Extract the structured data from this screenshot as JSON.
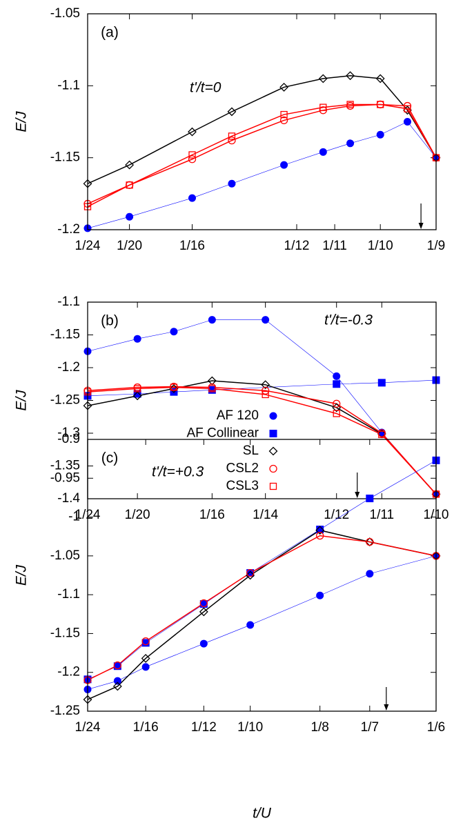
{
  "chart_data": [
    {
      "type": "line",
      "label": "(a)",
      "annotation": "t'/t=0",
      "y_label": "E/J",
      "legend": false,
      "arrow_x": 0.1081,
      "x": [
        0.041667,
        0.05,
        0.0625,
        0.0704,
        0.0808,
        0.0886,
        0.094,
        0.1,
        0.1054,
        0.111111
      ],
      "xlim": [
        0.041667,
        0.111111
      ],
      "xticks": [
        {
          "value": 0.041667,
          "label": "1/24"
        },
        {
          "value": 0.05,
          "label": "1/20"
        },
        {
          "value": 0.0625,
          "label": "1/16"
        },
        {
          "value": 0.083333,
          "label": "1/12"
        },
        {
          "value": 0.090909,
          "label": "1/11"
        },
        {
          "value": 0.1,
          "label": "1/10"
        },
        {
          "value": 0.111111,
          "label": "1/9"
        }
      ],
      "ylim": [
        -1.2,
        -1.05
      ],
      "yticks": [
        -1.2,
        -1.15,
        -1.1,
        -1.05
      ],
      "series": [
        {
          "name": "AF 120",
          "color": "#0000ff",
          "marker": "circle-filled",
          "values": [
            -1.199,
            -1.191,
            -1.178,
            -1.168,
            -1.155,
            -1.146,
            -1.14,
            -1.134,
            -1.125,
            -1.15
          ]
        },
        {
          "name": "SL",
          "color": "#000000",
          "marker": "diamond-open",
          "values": [
            -1.168,
            -1.155,
            -1.132,
            -1.118,
            -1.101,
            -1.095,
            -1.093,
            -1.095,
            -1.117,
            -1.15
          ]
        },
        {
          "name": "CSL2",
          "color": "#ff0000",
          "marker": "circle-open",
          "values": [
            -1.182,
            -1.169,
            -1.151,
            -1.138,
            -1.124,
            -1.117,
            -1.114,
            -1.113,
            -1.114,
            -1.15
          ]
        },
        {
          "name": "CSL3",
          "color": "#ff0000",
          "marker": "square-open",
          "values": [
            -1.184,
            -1.169,
            -1.148,
            -1.135,
            -1.12,
            -1.115,
            -1.113,
            -1.113,
            -1.116,
            -1.15
          ]
        }
      ]
    },
    {
      "type": "line",
      "label": "(b)",
      "annotation": "t'/t=-0.3",
      "y_label": "E/J",
      "legend": true,
      "arrow_x": 0.0868,
      "x": [
        0.041667,
        0.05,
        0.0561,
        0.0625,
        0.071429,
        0.083333,
        0.090909,
        0.1
      ],
      "xlim": [
        0.041667,
        0.1
      ],
      "xticks": [
        {
          "value": 0.041667,
          "label": "1/24"
        },
        {
          "value": 0.05,
          "label": "1/20"
        },
        {
          "value": 0.0625,
          "label": "1/16"
        },
        {
          "value": 0.071429,
          "label": "1/14"
        },
        {
          "value": 0.083333,
          "label": "1/12"
        },
        {
          "value": 0.090909,
          "label": "1/11"
        },
        {
          "value": 0.1,
          "label": "1/10"
        }
      ],
      "ylim": [
        -1.4,
        -1.1
      ],
      "yticks": [
        -1.4,
        -1.35,
        -1.3,
        -1.25,
        -1.2,
        -1.15,
        -1.1
      ],
      "series": [
        {
          "name": "AF 120",
          "color": "#0000ff",
          "marker": "circle-filled",
          "values": [
            -1.175,
            -1.156,
            -1.145,
            -1.127,
            -1.127,
            -1.213,
            -1.299,
            -1.393
          ]
        },
        {
          "name": "AF Collinear",
          "color": "#0000ff",
          "marker": "square-filled",
          "x": [
            0.041667,
            0.05,
            0.0561,
            0.0625,
            0.083333,
            0.090909,
            0.1
          ],
          "values": [
            -1.243,
            -1.24,
            -1.237,
            -1.234,
            -1.225,
            -1.223,
            -1.219
          ]
        },
        {
          "name": "SL",
          "color": "#000000",
          "marker": "diamond-open",
          "values": [
            -1.258,
            -1.243,
            -1.232,
            -1.22,
            -1.226,
            -1.261,
            -1.301,
            -1.393
          ]
        },
        {
          "name": "CSL2",
          "color": "#ff0000",
          "marker": "circle-open",
          "values": [
            -1.235,
            -1.23,
            -1.229,
            -1.23,
            -1.235,
            -1.255,
            -1.3,
            -1.393
          ]
        },
        {
          "name": "CSL3",
          "color": "#ff0000",
          "marker": "square-open",
          "values": [
            -1.237,
            -1.232,
            -1.23,
            -1.232,
            -1.241,
            -1.27,
            -1.302,
            -1.393
          ]
        }
      ]
    },
    {
      "type": "line",
      "label": "(c)",
      "annotation": "t'/t=+0.3",
      "y_label": "E/J",
      "x_label": "t/U",
      "legend": false,
      "arrow_x": 0.1488,
      "x": [
        0.041667,
        0.0524,
        0.0625,
        0.083333,
        0.1,
        0.125,
        0.142857,
        0.166667
      ],
      "xlim": [
        0.041667,
        0.166667
      ],
      "xticks": [
        {
          "value": 0.041667,
          "label": "1/24"
        },
        {
          "value": 0.0625,
          "label": "1/16"
        },
        {
          "value": 0.083333,
          "label": "1/12"
        },
        {
          "value": 0.1,
          "label": "1/10"
        },
        {
          "value": 0.125,
          "label": "1/8"
        },
        {
          "value": 0.142857,
          "label": "1/7"
        },
        {
          "value": 0.166667,
          "label": "1/6"
        }
      ],
      "ylim": [
        -1.25,
        -0.9
      ],
      "yticks": [
        -1.25,
        -1.2,
        -1.15,
        -1.1,
        -1.05,
        -1,
        -0.95,
        -0.9
      ],
      "series": [
        {
          "name": "AF 120",
          "color": "#0000ff",
          "marker": "circle-filled",
          "values": [
            -1.222,
            -1.211,
            -1.193,
            -1.163,
            -1.139,
            -1.101,
            -1.073,
            -1.05
          ]
        },
        {
          "name": "AF Collinear",
          "color": "#0000ff",
          "marker": "square-filled",
          "values": [
            -1.209,
            -1.192,
            -1.162,
            -1.112,
            -1.072,
            -1.016,
            -0.976,
            -0.927
          ]
        },
        {
          "name": "SL",
          "color": "#000000",
          "marker": "diamond-open",
          "values": [
            -1.235,
            -1.218,
            -1.182,
            -1.122,
            -1.075,
            -1.017,
            -1.032,
            -1.05
          ]
        },
        {
          "name": "CSL2",
          "color": "#ff0000",
          "marker": "circle-open",
          "values": [
            -1.21,
            -1.191,
            -1.16,
            -1.111,
            -1.072,
            -1.024,
            -1.032,
            -1.05
          ]
        }
      ]
    }
  ]
}
